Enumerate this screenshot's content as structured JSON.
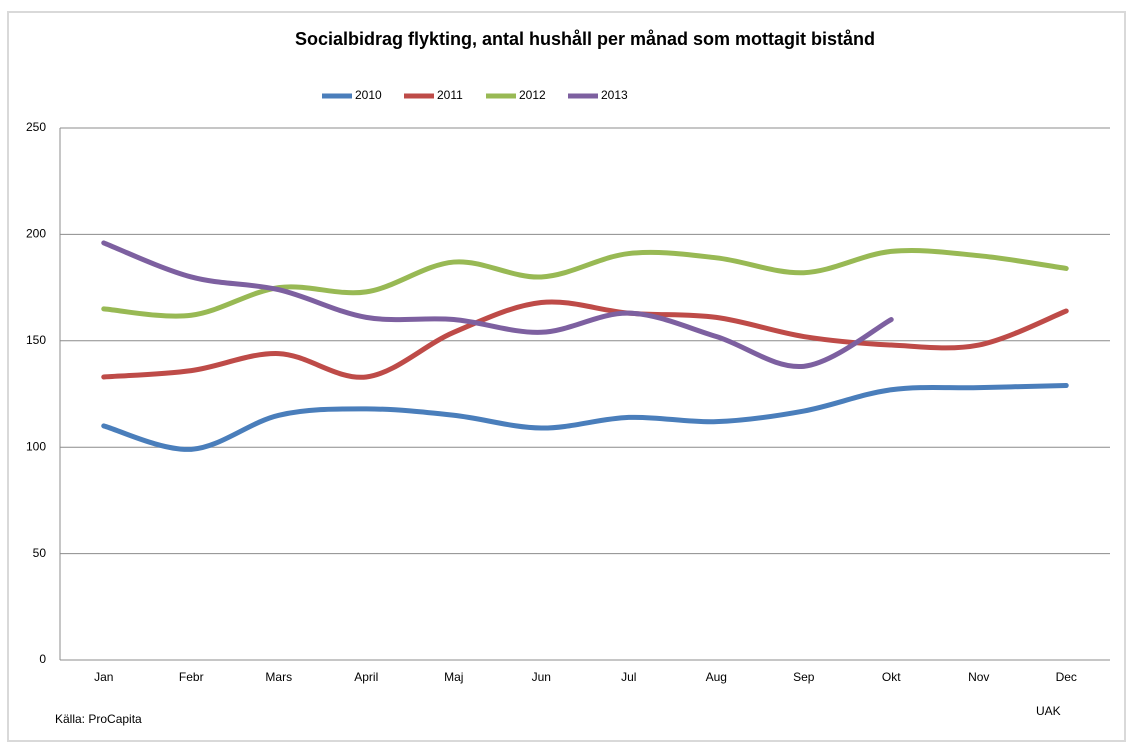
{
  "chart_data": {
    "type": "line",
    "title": "Socialbidrag flykting, antal hushåll per månad som mottagit bistånd",
    "categories": [
      "Jan",
      "Febr",
      "Mars",
      "April",
      "Maj",
      "Jun",
      "Jul",
      "Aug",
      "Sep",
      "Okt",
      "Nov",
      "Dec"
    ],
    "series": [
      {
        "name": "2010",
        "color": "#4a7ebb",
        "values": [
          110,
          99,
          115,
          118,
          115,
          109,
          114,
          112,
          117,
          127,
          128,
          129
        ]
      },
      {
        "name": "2011",
        "color": "#be4b48",
        "values": [
          133,
          136,
          144,
          133,
          154,
          168,
          163,
          161,
          152,
          148,
          148,
          164
        ]
      },
      {
        "name": "2012",
        "color": "#98b954",
        "values": [
          165,
          162,
          175,
          173,
          187,
          180,
          191,
          189,
          182,
          192,
          190,
          184
        ]
      },
      {
        "name": "2013",
        "color": "#7d60a0",
        "values": [
          196,
          180,
          174,
          161,
          160,
          154,
          163,
          152,
          138,
          160,
          null,
          null
        ]
      }
    ],
    "ylim": [
      0,
      250
    ],
    "yticks": [
      0,
      50,
      100,
      150,
      200,
      250
    ],
    "grid": true,
    "legend": "top",
    "source": "Källa: ProCapita",
    "note": "UAK"
  }
}
